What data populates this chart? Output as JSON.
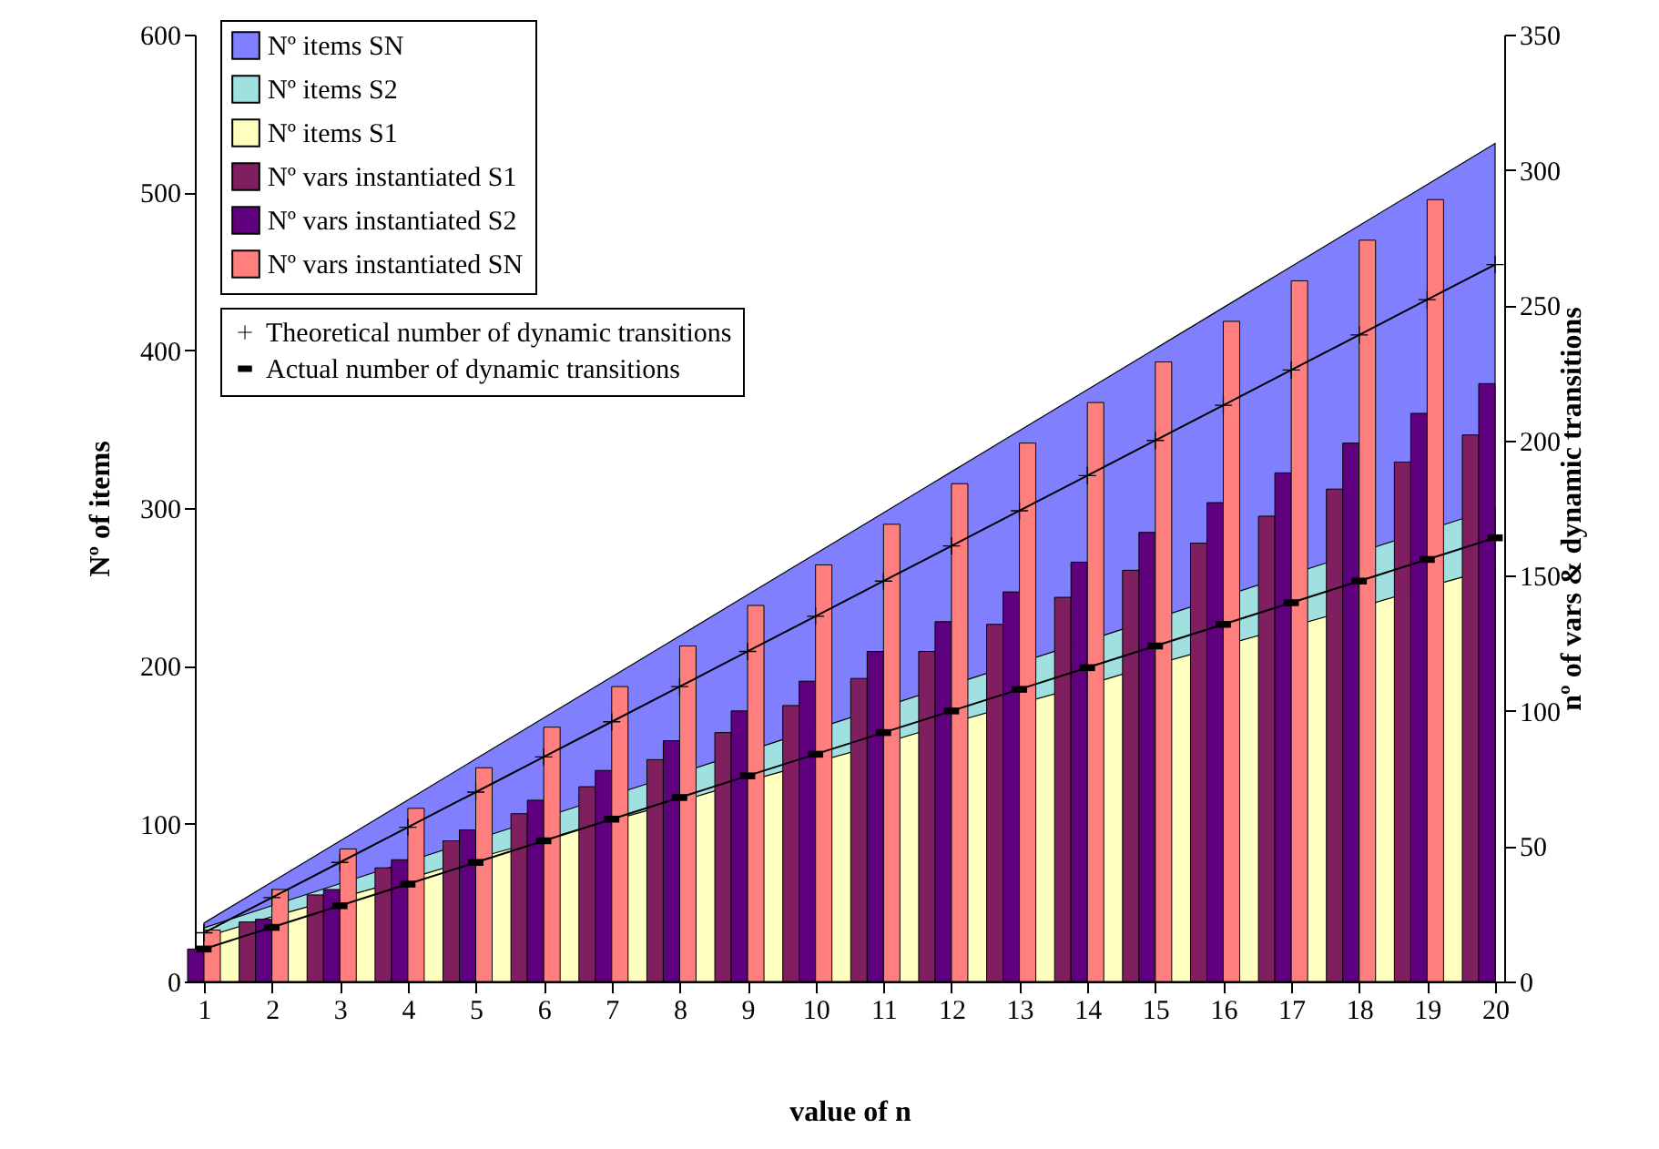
{
  "chart_data": {
    "type": "bar",
    "xlabel": "value of n",
    "ylabel": "Nº of items",
    "y2label": "nº of vars & dynamic transitions",
    "x": [
      1,
      2,
      3,
      4,
      5,
      6,
      7,
      8,
      9,
      10,
      11,
      12,
      13,
      14,
      15,
      16,
      17,
      18,
      19,
      20
    ],
    "xlim": [
      1,
      20
    ],
    "xticks": [
      1,
      2,
      3,
      4,
      5,
      6,
      7,
      8,
      9,
      10,
      11,
      12,
      13,
      14,
      15,
      16,
      17,
      18,
      19,
      20
    ],
    "ylim": [
      0,
      600
    ],
    "yticks": [
      0,
      100,
      200,
      300,
      400,
      500,
      600
    ],
    "y2lim": [
      0,
      350
    ],
    "y2ticks": [
      0,
      50,
      100,
      150,
      200,
      250,
      300,
      350
    ],
    "legend": "top left",
    "series": [
      {
        "name": "Nº items SN",
        "type": "area",
        "axis": "y",
        "color": "#8080ff",
        "values": [
          37,
          63,
          89,
          115,
          141,
          167,
          193,
          219,
          245,
          271,
          297,
          323,
          349,
          375,
          401,
          427,
          453,
          479,
          505,
          531
        ]
      },
      {
        "name": "Nº items S2",
        "type": "area",
        "axis": "y",
        "color": "#a0e0e0",
        "values": [
          34,
          48,
          62,
          76,
          90,
          104,
          118,
          132,
          146,
          160,
          174,
          188,
          202,
          216,
          230,
          244,
          258,
          272,
          286,
          300
        ]
      },
      {
        "name": "Nº items S1",
        "type": "area",
        "axis": "y",
        "color": "#ffffc0",
        "values": [
          28,
          41,
          53,
          65,
          78,
          90,
          102,
          114,
          127,
          139,
          151,
          164,
          176,
          188,
          201,
          213,
          225,
          237,
          250,
          262
        ]
      },
      {
        "name": "Nº vars instantiated S1",
        "axis": "y2",
        "color": "#7f1f5f",
        "values": [
          null,
          22,
          32,
          42,
          52,
          62,
          72,
          82,
          92,
          102,
          112,
          122,
          132,
          142,
          152,
          162,
          172,
          182,
          192,
          202
        ]
      },
      {
        "name": "Nº vars instantiated S2",
        "axis": "y2",
        "color": "#5f007f",
        "values": [
          12,
          23,
          34,
          45,
          56,
          67,
          78,
          89,
          100,
          111,
          122,
          133,
          144,
          155,
          166,
          177,
          188,
          199,
          210,
          221
        ]
      },
      {
        "name": "Nº vars instantiated SN",
        "axis": "y2",
        "color": "#ff7f7f",
        "values": [
          19,
          34,
          49,
          64,
          79,
          94,
          109,
          124,
          139,
          154,
          169,
          184,
          199,
          214,
          229,
          244,
          259,
          274,
          289,
          null
        ]
      },
      {
        "name": "Theoretical number of dynamic transitions",
        "type": "line",
        "axis": "y2",
        "color": "#000000",
        "marker": "cross",
        "values": [
          18,
          31,
          44,
          57,
          70,
          83,
          96,
          109,
          122,
          135,
          148,
          161,
          174,
          187,
          200,
          213,
          226,
          239,
          252,
          265
        ]
      },
      {
        "name": "Actual number of dynamic transitions",
        "type": "line",
        "axis": "y2",
        "color": "#000000",
        "marker": "square",
        "values": [
          12,
          20,
          28,
          36,
          44,
          52,
          60,
          68,
          76,
          84,
          92,
          100,
          108,
          116,
          124,
          132,
          140,
          148,
          156,
          164
        ]
      }
    ]
  }
}
